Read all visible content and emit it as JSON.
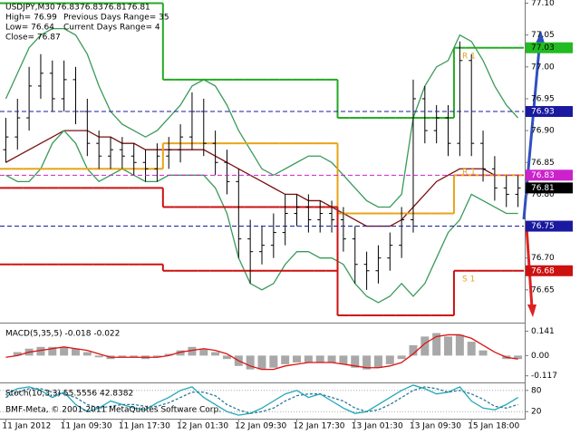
{
  "chart_data": [
    {
      "type": "ohlc",
      "title": "USDJPY,M30",
      "quote": [
        76.83,
        76.83,
        76.81,
        76.81
      ],
      "info": [
        "High= 76.99",
        "Low= 76.64",
        "Close= 76.87"
      ],
      "info_right": [
        "Previous Days Range= 35",
        "Current Days Range= 4"
      ],
      "footer": "BMF-Meta, © 2001-2011 MetaQuotes Software Corp.",
      "annotations": [
        "R 1",
        "R 1",
        "S 1"
      ],
      "categories": [
        "11 Jan 2012",
        null,
        null,
        null,
        null,
        "11 Jan 09:30",
        null,
        null,
        null,
        null,
        "11 Jan 17:30",
        null,
        null,
        null,
        null,
        "12 Jan 01:30",
        null,
        null,
        null,
        null,
        "12 Jan 09:30",
        null,
        null,
        null,
        null,
        "12 Jan 17:30",
        null,
        null,
        null,
        null,
        "13 Jan 01:30",
        null,
        null,
        null,
        null,
        "13 Jan 09:30",
        null,
        null,
        null,
        null,
        "15 Jan 18:00",
        null,
        null,
        null,
        null
      ],
      "open": [
        76.87,
        76.89,
        76.92,
        76.97,
        76.99,
        76.95,
        76.98,
        76.93,
        76.88,
        76.86,
        76.87,
        76.86,
        76.85,
        76.84,
        76.86,
        76.87,
        76.89,
        76.93,
        76.88,
        76.85,
        76.82,
        76.73,
        76.71,
        76.72,
        76.74,
        76.77,
        76.78,
        76.76,
        76.77,
        76.76,
        76.73,
        76.69,
        76.68,
        76.7,
        76.72,
        76.76,
        76.95,
        76.9,
        76.92,
        76.88,
        77.01,
        76.88,
        76.84,
        76.81,
        76.8
      ],
      "high": [
        76.92,
        76.95,
        77.0,
        77.02,
        77.01,
        77.01,
        77.0,
        76.95,
        76.9,
        76.89,
        76.89,
        76.88,
        76.87,
        76.88,
        76.89,
        76.91,
        76.96,
        76.95,
        76.9,
        76.87,
        76.84,
        76.76,
        76.75,
        76.77,
        76.8,
        76.8,
        76.8,
        76.79,
        76.79,
        76.78,
        76.75,
        76.71,
        76.72,
        76.74,
        76.78,
        76.98,
        76.97,
        76.94,
        76.94,
        77.04,
        77.02,
        76.9,
        76.86,
        76.83,
        76.83
      ],
      "low": [
        76.85,
        76.87,
        76.9,
        76.95,
        76.93,
        76.93,
        76.91,
        76.86,
        76.84,
        76.84,
        76.84,
        76.83,
        76.82,
        76.82,
        76.84,
        76.85,
        76.87,
        76.86,
        76.83,
        76.8,
        76.7,
        76.66,
        76.69,
        76.7,
        76.72,
        76.75,
        76.74,
        76.74,
        76.74,
        76.71,
        76.66,
        76.65,
        76.66,
        76.68,
        76.7,
        76.74,
        76.88,
        76.88,
        76.86,
        76.86,
        76.86,
        76.82,
        76.79,
        76.78,
        76.78
      ],
      "close": [
        76.89,
        76.92,
        76.97,
        76.99,
        76.95,
        76.98,
        76.93,
        76.88,
        76.86,
        76.87,
        76.86,
        76.85,
        76.84,
        76.86,
        76.87,
        76.89,
        76.93,
        76.88,
        76.85,
        76.82,
        76.73,
        76.71,
        76.72,
        76.74,
        76.77,
        76.78,
        76.76,
        76.77,
        76.76,
        76.73,
        76.69,
        76.68,
        76.7,
        76.72,
        76.76,
        76.95,
        76.9,
        76.92,
        76.88,
        77.01,
        76.88,
        76.84,
        76.81,
        76.8,
        76.81
      ],
      "color": "#000000",
      "series": [
        {
          "style": "line",
          "color": "#7a1010",
          "values": [
            76.85,
            76.86,
            76.87,
            76.88,
            76.89,
            76.9,
            76.9,
            76.9,
            76.89,
            76.89,
            76.88,
            76.88,
            76.87,
            76.87,
            76.87,
            76.87,
            76.87,
            76.87,
            76.86,
            76.85,
            76.84,
            76.83,
            76.82,
            76.81,
            76.8,
            76.8,
            76.79,
            76.79,
            76.78,
            76.77,
            76.76,
            76.75,
            76.75,
            76.75,
            76.76,
            76.78,
            76.8,
            76.82,
            76.83,
            76.84,
            76.84,
            76.84,
            76.83,
            76.83,
            76.83
          ]
        },
        {
          "style": "line",
          "color": "#3a9a5a",
          "values": [
            76.95,
            76.99,
            77.03,
            77.05,
            77.06,
            77.06,
            77.05,
            77.02,
            76.97,
            76.93,
            76.91,
            76.9,
            76.89,
            76.9,
            76.92,
            76.94,
            76.97,
            76.98,
            76.97,
            76.94,
            76.9,
            76.87,
            76.84,
            76.83,
            76.84,
            76.85,
            76.86,
            76.86,
            76.85,
            76.83,
            76.81,
            76.79,
            76.78,
            76.78,
            76.8,
            76.92,
            76.97,
            77.0,
            77.01,
            77.05,
            77.04,
            77.01,
            76.97,
            76.94,
            76.92
          ]
        },
        {
          "style": "line",
          "color": "#3a9a5a",
          "values": [
            76.83,
            76.82,
            76.82,
            76.84,
            76.88,
            76.9,
            76.88,
            76.84,
            76.82,
            76.83,
            76.84,
            76.83,
            76.82,
            76.82,
            76.83,
            76.83,
            76.83,
            76.83,
            76.81,
            76.77,
            76.7,
            76.66,
            76.65,
            76.66,
            76.69,
            76.71,
            76.71,
            76.7,
            76.7,
            76.69,
            76.66,
            76.64,
            76.63,
            76.64,
            76.66,
            76.64,
            76.66,
            76.7,
            76.74,
            76.76,
            76.8,
            76.79,
            76.78,
            76.77,
            76.77
          ]
        },
        {
          "style": "step",
          "color": "#e8a317",
          "values": [
            76.84,
            76.84,
            76.84,
            76.84,
            76.84,
            76.84,
            76.84,
            76.84,
            76.84,
            76.84,
            76.84,
            76.84,
            76.84,
            76.84,
            76.88,
            76.88,
            76.88,
            76.88,
            76.88,
            76.88,
            76.88,
            76.88,
            76.88,
            76.88,
            76.88,
            76.88,
            76.88,
            76.88,
            76.88,
            76.77,
            76.77,
            76.77,
            76.77,
            76.77,
            76.77,
            76.77,
            76.77,
            76.77,
            76.77,
            76.83,
            76.83,
            76.83,
            76.83,
            76.83,
            76.83
          ]
        },
        {
          "style": "step",
          "color": "#cc1111",
          "values": [
            76.81,
            76.81,
            76.81,
            76.81,
            76.81,
            76.81,
            76.81,
            76.81,
            76.81,
            76.81,
            76.81,
            76.81,
            76.81,
            76.81,
            76.78,
            76.78,
            76.78,
            76.78,
            76.78,
            76.78,
            76.78,
            76.78,
            76.78,
            76.78,
            76.78,
            76.78,
            76.78,
            76.78,
            76.78,
            76.61,
            76.61,
            76.61,
            76.61,
            76.61,
            76.61,
            76.61,
            76.61,
            76.61,
            76.61,
            76.68,
            76.68,
            76.68,
            76.68,
            76.68,
            76.68
          ]
        },
        {
          "style": "step",
          "color": "#cc1111",
          "values": [
            76.69,
            76.69,
            76.69,
            76.69,
            76.69,
            76.69,
            76.69,
            76.69,
            76.69,
            76.69,
            76.69,
            76.69,
            76.69,
            76.69,
            76.68,
            76.68,
            76.68,
            76.68,
            76.68,
            76.68,
            76.68,
            76.68,
            76.68,
            76.68,
            76.68,
            76.68,
            76.68,
            76.68,
            76.68,
            null,
            null,
            null,
            null,
            null,
            null,
            null,
            null,
            null,
            null,
            null,
            null,
            null,
            null,
            null,
            null
          ]
        },
        {
          "style": "step",
          "color": "#22aa22",
          "values": [
            77.1,
            77.1,
            77.1,
            77.1,
            77.1,
            77.1,
            77.1,
            77.1,
            77.1,
            77.1,
            77.1,
            77.1,
            77.1,
            77.1,
            76.98,
            76.98,
            76.98,
            76.98,
            76.98,
            76.98,
            76.98,
            76.98,
            76.98,
            76.98,
            76.98,
            76.98,
            76.98,
            76.98,
            76.98,
            76.92,
            76.92,
            76.92,
            76.92,
            76.92,
            76.92,
            76.92,
            76.92,
            76.92,
            76.92,
            77.03,
            77.03,
            77.03,
            77.03,
            77.03,
            77.03
          ]
        }
      ],
      "levels": [
        {
          "value": 77.03,
          "color": "#22bb22",
          "line": "none"
        },
        {
          "value": 76.93,
          "color": "#1a1aa0",
          "line": "dash"
        },
        {
          "value": 76.83,
          "color": "#cc22cc",
          "line": "dash"
        },
        {
          "value": 76.81,
          "color": "#000000",
          "line": "none"
        },
        {
          "value": 76.75,
          "color": "#1a1aa0",
          "line": "dash"
        },
        {
          "value": 76.68,
          "color": "#cc1111",
          "line": "none"
        }
      ],
      "ylim": [
        76.6,
        77.105
      ],
      "yticks": [
        {
          "value": 77.1,
          "label": "77.10"
        },
        77.05,
        {
          "value": 77,
          "label": "77.00"
        },
        76.95,
        {
          "value": 76.9,
          "label": "76.90"
        },
        76.85,
        {
          "value": 76.8,
          "label": "76.80"
        },
        76.75,
        {
          "value": 76.7,
          "label": "76.70"
        },
        76.65
      ],
      "grid": false
    },
    {
      "type": "macd",
      "title": "MACD(5,35,5) -0.018 -0.022",
      "color": "#a8a8a8",
      "values": [
        0,
        0.02,
        0.04,
        0.05,
        0.05,
        0.05,
        0.04,
        0.02,
        -0.01,
        -0.02,
        -0.01,
        -0.01,
        -0.02,
        -0.01,
        0.01,
        0.03,
        0.05,
        0.04,
        0.02,
        -0.02,
        -0.06,
        -0.08,
        -0.08,
        -0.07,
        -0.05,
        -0.04,
        -0.04,
        -0.04,
        -0.04,
        -0.05,
        -0.07,
        -0.08,
        -0.07,
        -0.05,
        -0.02,
        0.06,
        0.11,
        0.13,
        0.11,
        0.12,
        0.08,
        0.03,
        0,
        -0.02,
        -0.02
      ],
      "series": [
        {
          "style": "line",
          "color": "#dd1111",
          "values": [
            -0.01,
            0,
            0.02,
            0.03,
            0.04,
            0.05,
            0.04,
            0.03,
            0.01,
            -0.01,
            -0.01,
            -0.01,
            -0.01,
            -0.01,
            0,
            0.02,
            0.03,
            0.04,
            0.03,
            0.01,
            -0.03,
            -0.06,
            -0.08,
            -0.08,
            -0.06,
            -0.05,
            -0.04,
            -0.04,
            -0.04,
            -0.05,
            -0.06,
            -0.07,
            -0.07,
            -0.06,
            -0.04,
            0.01,
            0.07,
            0.11,
            0.12,
            0.12,
            0.1,
            0.06,
            0.02,
            -0.01,
            -0.02
          ]
        }
      ],
      "ylim": [
        -0.15,
        0.18
      ],
      "yticks": [
        0.141,
        {
          "value": 0,
          "label": "0.00"
        },
        -0.117
      ]
    },
    {
      "type": "stoch",
      "title": "Stoch(10,3,3) 55.5556 42.8382",
      "series": [
        {
          "style": "line",
          "color": "#20a8b8",
          "values": [
            70,
            85,
            90,
            80,
            60,
            75,
            40,
            20,
            30,
            50,
            40,
            30,
            25,
            45,
            60,
            80,
            90,
            60,
            40,
            20,
            10,
            15,
            30,
            50,
            70,
            80,
            60,
            70,
            50,
            30,
            15,
            20,
            40,
            60,
            80,
            95,
            85,
            70,
            75,
            90,
            50,
            30,
            25,
            40,
            60
          ]
        },
        {
          "style": "dash",
          "color": "#2a7a9a",
          "values": [
            60,
            75,
            85,
            85,
            75,
            70,
            60,
            40,
            30,
            35,
            40,
            40,
            35,
            35,
            45,
            60,
            75,
            75,
            65,
            40,
            25,
            15,
            20,
            30,
            50,
            65,
            70,
            70,
            60,
            50,
            30,
            20,
            25,
            40,
            60,
            80,
            90,
            85,
            75,
            80,
            70,
            55,
            35,
            30,
            40
          ]
        }
      ],
      "ylim": [
        0,
        100
      ],
      "yticks": [
        80,
        20
      ]
    }
  ]
}
